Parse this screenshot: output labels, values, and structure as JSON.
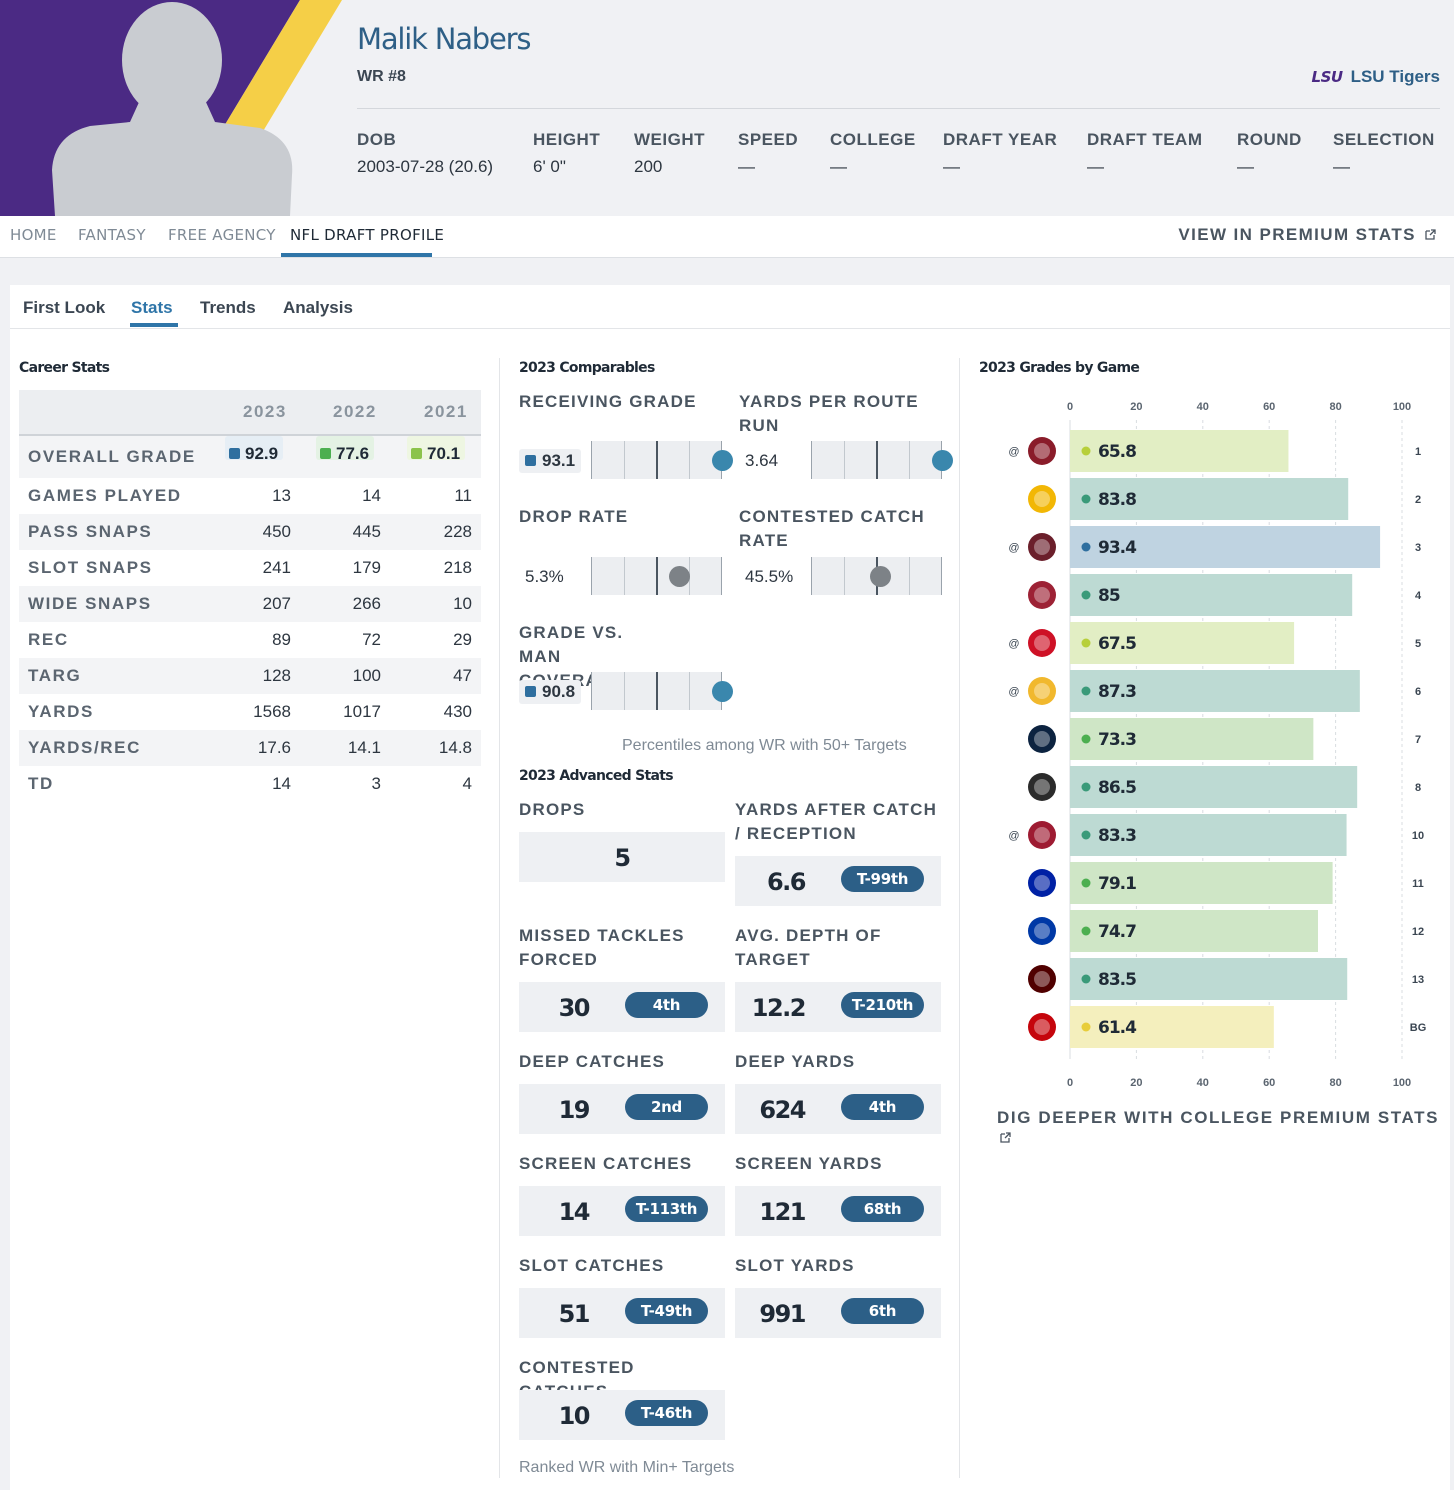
{
  "player": {
    "name": "Malik Nabers",
    "position": "WR #8",
    "team": "LSU Tigers",
    "team_logo_text": "LSU",
    "team_color": "#4b2a84",
    "bio": [
      {
        "label": "DOB",
        "value": "2003-07-28 (20.6)"
      },
      {
        "label": "HEIGHT",
        "value": "6' 0\""
      },
      {
        "label": "WEIGHT",
        "value": "200"
      },
      {
        "label": "SPEED",
        "value": "—"
      },
      {
        "label": "COLLEGE",
        "value": "—"
      },
      {
        "label": "DRAFT YEAR",
        "value": "—"
      },
      {
        "label": "DRAFT TEAM",
        "value": "—"
      },
      {
        "label": "ROUND",
        "value": "—"
      },
      {
        "label": "SELECTION",
        "value": "—"
      }
    ]
  },
  "nav": {
    "items": [
      "HOME",
      "FANTASY",
      "FREE AGENCY",
      "NFL DRAFT PROFILE"
    ],
    "active": "NFL DRAFT PROFILE",
    "premium_link": "VIEW IN PREMIUM STATS",
    "premium_icon": "external-link-icon"
  },
  "sub_tabs": {
    "items": [
      "First Look",
      "Stats",
      "Trends",
      "Analysis"
    ],
    "active": "Stats"
  },
  "career": {
    "title": "Career Stats",
    "years": [
      "2023",
      "2022",
      "2021"
    ],
    "grade_row": {
      "label": "OVERALL GRADE",
      "values": [
        "92.9",
        "77.6",
        "70.1"
      ],
      "colors": [
        "#2f6f9f",
        "#4caf50",
        "#8bc34a"
      ],
      "bg_colors": [
        "#e6eef5",
        "#e4f2e4",
        "#eef6e2"
      ]
    },
    "rows": [
      {
        "label": "GAMES PLAYED",
        "values": [
          "13",
          "14",
          "11"
        ]
      },
      {
        "label": "PASS SNAPS",
        "values": [
          "450",
          "445",
          "228"
        ]
      },
      {
        "label": "SLOT SNAPS",
        "values": [
          "241",
          "179",
          "218"
        ]
      },
      {
        "label": "WIDE SNAPS",
        "values": [
          "207",
          "266",
          "10"
        ]
      },
      {
        "label": "REC",
        "values": [
          "89",
          "72",
          "29"
        ]
      },
      {
        "label": "TARG",
        "values": [
          "128",
          "100",
          "47"
        ]
      },
      {
        "label": "YARDS",
        "values": [
          "1568",
          "1017",
          "430"
        ]
      },
      {
        "label": "YARDS/REC",
        "values": [
          "17.6",
          "14.1",
          "14.8"
        ]
      },
      {
        "label": "TD",
        "values": [
          "14",
          "3",
          "4"
        ]
      }
    ]
  },
  "comparables": {
    "title": "2023 Comparables",
    "items": [
      {
        "label": "RECEIVING GRADE",
        "value": "93.1",
        "boxed": true,
        "percentile": 1.0,
        "dot_color": "#3a87ad"
      },
      {
        "label": "YARDS PER ROUTE RUN",
        "value": "3.64",
        "boxed": false,
        "percentile": 1.0,
        "dot_color": "#3a87ad"
      },
      {
        "label": "DROP RATE",
        "value": "5.3%",
        "boxed": false,
        "percentile": 0.67,
        "dot_color": "#7d8287"
      },
      {
        "label": "CONTESTED CATCH RATE",
        "value": "45.5%",
        "boxed": false,
        "percentile": 0.53,
        "dot_color": "#7d8287"
      },
      {
        "label": "GRADE VS. MAN COVERAGE",
        "value": "90.8",
        "boxed": true,
        "percentile": 1.0,
        "dot_color": "#3a87ad"
      }
    ],
    "note": "Percentiles among WR with 50+ Targets"
  },
  "advanced": {
    "title": "2023 Advanced Stats",
    "items": [
      {
        "label": "DROPS",
        "value": "5",
        "rank": ""
      },
      {
        "label": "YARDS AFTER CATCH / RECEPTION",
        "value": "6.6",
        "rank": "T-99th"
      },
      {
        "label": "MISSED TACKLES FORCED",
        "value": "30",
        "rank": "4th"
      },
      {
        "label": "AVG. DEPTH OF TARGET",
        "value": "12.2",
        "rank": "T-210th"
      },
      {
        "label": "DEEP CATCHES",
        "value": "19",
        "rank": "2nd"
      },
      {
        "label": "DEEP YARDS",
        "value": "624",
        "rank": "4th"
      },
      {
        "label": "SCREEN CATCHES",
        "value": "14",
        "rank": "T-113th"
      },
      {
        "label": "SCREEN YARDS",
        "value": "121",
        "rank": "68th"
      },
      {
        "label": "SLOT CATCHES",
        "value": "51",
        "rank": "T-49th"
      },
      {
        "label": "SLOT YARDS",
        "value": "991",
        "rank": "6th"
      },
      {
        "label": "CONTESTED CATCHES",
        "value": "10",
        "rank": "T-46th"
      }
    ],
    "note": "Ranked WR with Min+ Targets"
  },
  "chart_data": {
    "type": "bar",
    "title": "2023 Grades by Game",
    "orientation": "horizontal",
    "xlim": [
      0,
      100
    ],
    "ticks": [
      "0",
      "20",
      "40",
      "60",
      "80",
      "100"
    ],
    "categories": [
      "1",
      "2",
      "3",
      "4",
      "5",
      "6",
      "7",
      "8",
      "10",
      "11",
      "12",
      "13",
      "BG"
    ],
    "values": [
      65.8,
      83.8,
      93.4,
      85,
      67.5,
      87.3,
      73.3,
      86.5,
      83.3,
      79.1,
      74.7,
      83.5,
      61.4
    ],
    "labels": [
      "65.8",
      "83.8",
      "93.4",
      "85",
      "67.5",
      "87.3",
      "73.3",
      "86.5",
      "83.3",
      "79.1",
      "74.7",
      "83.5",
      "61.4"
    ],
    "away": [
      true,
      false,
      true,
      false,
      true,
      true,
      false,
      false,
      true,
      false,
      false,
      false,
      false
    ],
    "away_marker": "@",
    "opponent_icons": [
      "florida-state-logo-icon",
      "grambling-logo-icon",
      "mississippi-state-logo-icon",
      "arkansas-logo-icon",
      "ole-miss-logo-icon",
      "missouri-logo-icon",
      "auburn-logo-icon",
      "army-logo-icon",
      "alabama-logo-icon",
      "florida-logo-icon",
      "georgia-state-logo-icon",
      "texas-am-logo-icon",
      "wisconsin-logo-icon"
    ],
    "grid": true,
    "bar_colors": {
      "high": "#bfd3e1",
      "mid_high": "#bddad3",
      "mid": "#cfe6c6",
      "low": "#e2eec4",
      "lowest": "#f4efbd"
    },
    "dot_colors": {
      "high": "#2f6f9f",
      "mid_high": "#3a9a79",
      "mid": "#4caf50",
      "low": "#b7cf3a",
      "lowest": "#e8cd3a"
    },
    "footer_link": "DIG DEEPER WITH COLLEGE PREMIUM STATS"
  }
}
